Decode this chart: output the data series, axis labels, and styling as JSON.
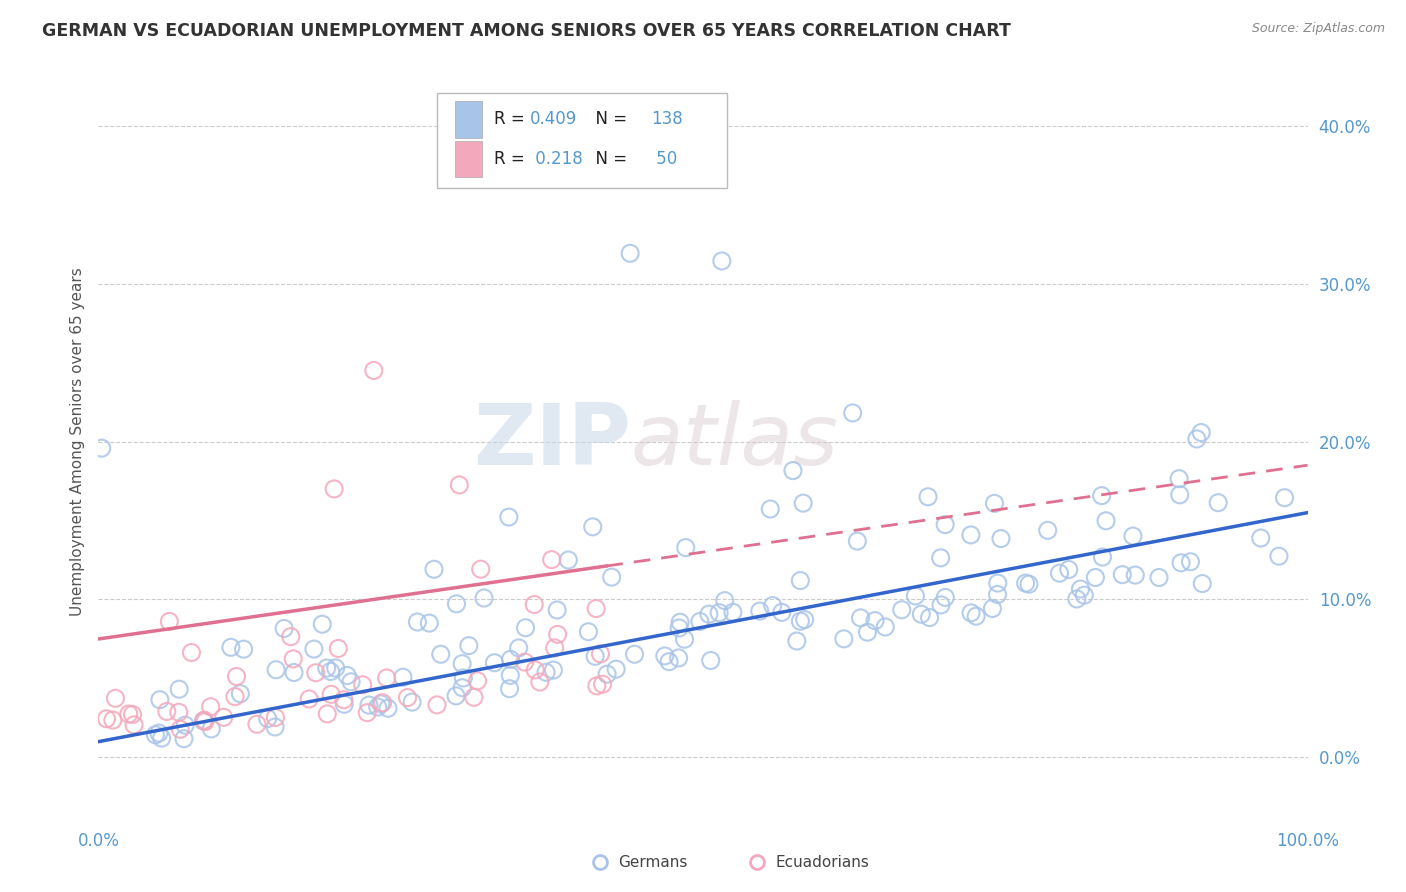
{
  "title": "GERMAN VS ECUADORIAN UNEMPLOYMENT AMONG SENIORS OVER 65 YEARS CORRELATION CHART",
  "source": "Source: ZipAtlas.com",
  "ylabel": "Unemployment Among Seniors over 65 years",
  "legend_label_german": "Germans",
  "legend_label_ecuadorian": "Ecuadorians",
  "xlim": [
    0,
    1
  ],
  "ylim": [
    -0.04,
    0.44
  ],
  "yticks": [
    0.0,
    0.1,
    0.2,
    0.3,
    0.4
  ],
  "ytick_labels": [
    "0.0%",
    "10.0%",
    "20.0%",
    "30.0%",
    "40.0%"
  ],
  "german_color": "#a8c4e8",
  "ecuadorian_color": "#f4a8bb",
  "trend_german_color": "#3366cc",
  "trend_ecuadorian_color": "#e07090",
  "watermark_zip": "ZIP",
  "watermark_atlas": "atlas",
  "background_color": "#ffffff",
  "grid_color": "#cccccc",
  "german_R": 0.409,
  "german_N": 138,
  "ecuadorian_R": 0.218,
  "ecuadorian_N": 50,
  "tick_color": "#5599cc",
  "german_trend_x0": 0.0,
  "german_trend_y0": 0.01,
  "german_trend_x1": 1.0,
  "german_trend_y1": 0.155,
  "ecuadorian_trend_x0": 0.0,
  "ecuadorian_trend_y0": 0.075,
  "ecuadorian_trend_x1": 1.0,
  "ecuadorian_trend_y1": 0.185
}
